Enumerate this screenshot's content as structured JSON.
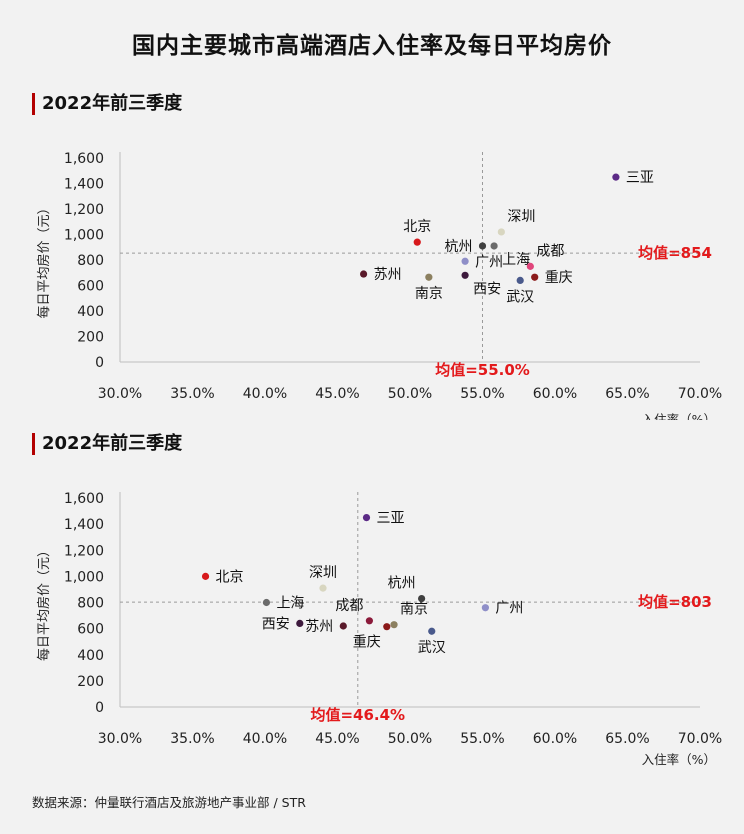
{
  "title": "国内主要城市高端酒店入住率及每日平均房价",
  "source": "数据来源：仲量联行酒店及旅游地产事业部 / STR",
  "chart_data": [
    {
      "type": "scatter",
      "section_label": "2022年前三季度",
      "ylabel": "每日平均房价（元）",
      "xlabel": "入住率（%）",
      "xlim": [
        30,
        70
      ],
      "ylim": [
        0,
        1600
      ],
      "xticks": [
        "30.0%",
        "35.0%",
        "40.0%",
        "45.0%",
        "50.0%",
        "55.0%",
        "60.0%",
        "65.0%",
        "70.0%"
      ],
      "yticks": [
        "0",
        "200",
        "400",
        "600",
        "800",
        "1,000",
        "1,200",
        "1,400",
        "1,600"
      ],
      "mean_x": 55.0,
      "mean_y": 854,
      "mean_x_label": "均值=55.0%",
      "mean_y_label": "均值=854",
      "points": [
        {
          "city": "三亚",
          "x": 64.2,
          "y": 1450,
          "color": "#5b2a86",
          "label_pos": "right"
        },
        {
          "city": "北京",
          "x": 50.5,
          "y": 940,
          "color": "#d7191c",
          "label_pos": "above"
        },
        {
          "city": "深圳",
          "x": 56.3,
          "y": 1020,
          "color": "#d8d6c0",
          "label_pos": "above-right"
        },
        {
          "city": "杭州",
          "x": 55.0,
          "y": 910,
          "color": "#404040",
          "label_pos": "left"
        },
        {
          "city": "上海",
          "x": 55.8,
          "y": 910,
          "color": "#6b6b6b",
          "label_pos": "below-right"
        },
        {
          "city": "广州",
          "x": 53.8,
          "y": 790,
          "color": "#8f8fc8",
          "label_pos": "right"
        },
        {
          "city": "成都",
          "x": 58.3,
          "y": 750,
          "color": "#e0457b",
          "label_pos": "above-right"
        },
        {
          "city": "重庆",
          "x": 58.6,
          "y": 665,
          "color": "#8b1a1a",
          "label_pos": "right"
        },
        {
          "city": "武汉",
          "x": 57.6,
          "y": 640,
          "color": "#4a5a8c",
          "label_pos": "below"
        },
        {
          "city": "西安",
          "x": 53.8,
          "y": 680,
          "color": "#3d1a3d",
          "label_pos": "below-right"
        },
        {
          "city": "南京",
          "x": 51.3,
          "y": 665,
          "color": "#8c8060",
          "label_pos": "below"
        },
        {
          "city": "苏州",
          "x": 46.8,
          "y": 690,
          "color": "#5a1a2a",
          "label_pos": "right"
        }
      ]
    },
    {
      "type": "scatter",
      "section_label": "2022年前三季度",
      "ylabel": "每日平均房价（元）",
      "xlabel": "入住率（%）",
      "xlim": [
        30,
        70
      ],
      "ylim": [
        0,
        1600
      ],
      "xticks": [
        "30.0%",
        "35.0%",
        "40.0%",
        "45.0%",
        "50.0%",
        "55.0%",
        "60.0%",
        "65.0%",
        "70.0%"
      ],
      "yticks": [
        "0",
        "200",
        "400",
        "600",
        "800",
        "1,000",
        "1,200",
        "1,400",
        "1,600"
      ],
      "mean_x": 46.4,
      "mean_y": 803,
      "mean_x_label": "均值=46.4%",
      "mean_y_label": "均值=803",
      "points": [
        {
          "city": "三亚",
          "x": 47.0,
          "y": 1450,
          "color": "#5b2a86",
          "label_pos": "right"
        },
        {
          "city": "北京",
          "x": 35.9,
          "y": 1000,
          "color": "#d7191c",
          "label_pos": "right"
        },
        {
          "city": "深圳",
          "x": 44.0,
          "y": 910,
          "color": "#d8d6c0",
          "label_pos": "above"
        },
        {
          "city": "上海",
          "x": 40.1,
          "y": 800,
          "color": "#6b6b6b",
          "label_pos": "right"
        },
        {
          "city": "西安",
          "x": 42.4,
          "y": 640,
          "color": "#3d1a3d",
          "label_pos": "left"
        },
        {
          "city": "苏州",
          "x": 45.4,
          "y": 620,
          "color": "#5a1a2a",
          "label_pos": "left"
        },
        {
          "city": "成都",
          "x": 47.2,
          "y": 660,
          "color": "#8b1a3a",
          "label_pos": "above-left"
        },
        {
          "city": "重庆",
          "x": 48.4,
          "y": 615,
          "color": "#8b1a1a",
          "label_pos": "below-left"
        },
        {
          "city": "南京",
          "x": 48.9,
          "y": 630,
          "color": "#8c8060",
          "label_pos": "above-right"
        },
        {
          "city": "杭州",
          "x": 50.8,
          "y": 830,
          "color": "#404040",
          "label_pos": "above-left"
        },
        {
          "city": "武汉",
          "x": 51.5,
          "y": 580,
          "color": "#4a5a8c",
          "label_pos": "below"
        },
        {
          "city": "广州",
          "x": 55.2,
          "y": 760,
          "color": "#8f8fc8",
          "label_pos": "right"
        }
      ]
    }
  ]
}
